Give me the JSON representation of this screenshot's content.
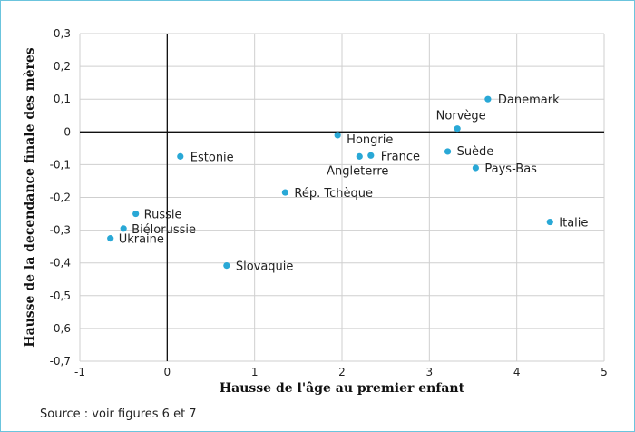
{
  "chart_data": {
    "type": "scatter",
    "xlabel": "Hausse de l'âge au premier enfant",
    "ylabel": "Hausse de la decendance finale des mères",
    "xlim": [
      -1,
      5
    ],
    "ylim": [
      -0.7,
      0.3
    ],
    "x_ticks": [
      "-1",
      "0",
      "1",
      "2",
      "3",
      "4",
      "5"
    ],
    "y_ticks": [
      "0,3",
      "0,2",
      "0,1",
      "0",
      "-0,1",
      "-0,2",
      "-0,3",
      "-0,4",
      "-0,5",
      "-0,6",
      "-0,7"
    ],
    "grid": true,
    "marker_color": "#29a8d6",
    "points": [
      {
        "label": "Danemark",
        "x": 3.67,
        "y": 0.1
      },
      {
        "label": "Norvège",
        "x": 3.32,
        "y": 0.01
      },
      {
        "label": "Hongrie",
        "x": 1.95,
        "y": -0.01
      },
      {
        "label": "Angleterre",
        "x": 2.2,
        "y": -0.075
      },
      {
        "label": "France",
        "x": 2.33,
        "y": -0.072
      },
      {
        "label": "Suède",
        "x": 3.21,
        "y": -0.06
      },
      {
        "label": "Pays-Bas",
        "x": 3.53,
        "y": -0.11
      },
      {
        "label": "Estonie",
        "x": 0.15,
        "y": -0.075
      },
      {
        "label": "Rép. Tchèque",
        "x": 1.35,
        "y": -0.185
      },
      {
        "label": "Italie",
        "x": 4.38,
        "y": -0.275
      },
      {
        "label": "Russie",
        "x": -0.36,
        "y": -0.25
      },
      {
        "label": "Biélorussie",
        "x": -0.5,
        "y": -0.295
      },
      {
        "label": "Ukraine",
        "x": -0.65,
        "y": -0.325
      },
      {
        "label": "Slovaquie",
        "x": 0.68,
        "y": -0.408
      }
    ]
  },
  "footer": {
    "source": "Source : voir figures 6 et 7"
  }
}
